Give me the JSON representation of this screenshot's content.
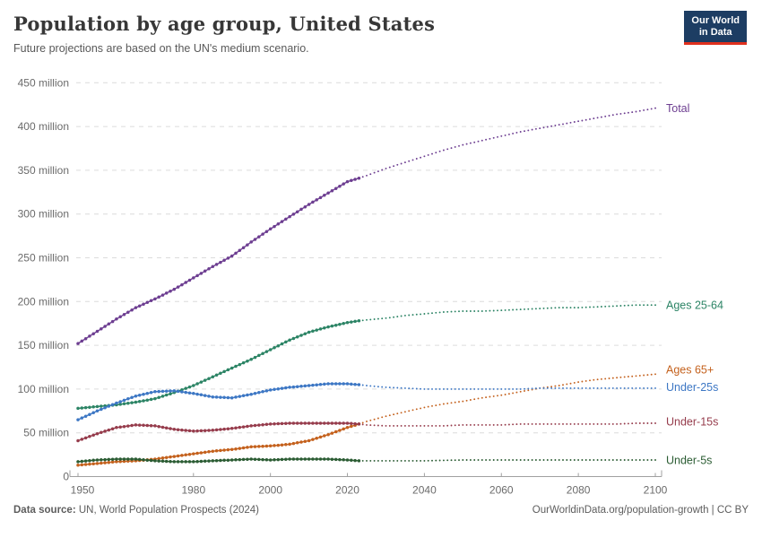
{
  "header": {
    "logo_line1": "Our World",
    "logo_line2": "in Data",
    "logo_bg": "#1d3d63",
    "logo_accent": "#e0301e"
  },
  "footer": {
    "source_label": "Data source:",
    "source_text": " UN, World Population Prospects (2024)",
    "credit": "OurWorldinData.org/population-growth | CC BY"
  },
  "chart_data": {
    "type": "line",
    "title": "Population by age group, United States",
    "subtitle": "Future projections are based on the UN's medium scenario.",
    "unit": "million",
    "xlim": [
      1950,
      2100
    ],
    "ylim": [
      0,
      450
    ],
    "grid": "dashed-horizontal",
    "legend_position": "right-of-line-ends",
    "projection_start_year": 2023,
    "x_axis": {
      "ticks": [
        {
          "year": 1950,
          "label": "1950"
        },
        {
          "year": 1980,
          "label": "1980"
        },
        {
          "year": 2000,
          "label": "2000"
        },
        {
          "year": 2020,
          "label": "2020"
        },
        {
          "year": 2040,
          "label": "2040"
        },
        {
          "year": 2060,
          "label": "2060"
        },
        {
          "year": 2080,
          "label": "2080"
        },
        {
          "year": 2100,
          "label": "2100"
        }
      ]
    },
    "y_axis": {
      "ticks": [
        {
          "value": 0,
          "label": "0"
        },
        {
          "value": 50,
          "label": "50 million"
        },
        {
          "value": 100,
          "label": "100 million"
        },
        {
          "value": 150,
          "label": "150 million"
        },
        {
          "value": 200,
          "label": "200 million"
        },
        {
          "value": 250,
          "label": "250 million"
        },
        {
          "value": 300,
          "label": "300 million"
        },
        {
          "value": 350,
          "label": "350 million"
        },
        {
          "value": 400,
          "label": "400 million"
        },
        {
          "value": 450,
          "label": "450 million"
        }
      ]
    },
    "series": [
      {
        "name": "Total",
        "slug": "total",
        "color": "#6d3e91",
        "label_dy": 0,
        "points": [
          [
            1950,
            152
          ],
          [
            1955,
            166
          ],
          [
            1960,
            180
          ],
          [
            1965,
            193
          ],
          [
            1970,
            203
          ],
          [
            1975,
            214
          ],
          [
            1980,
            227
          ],
          [
            1985,
            240
          ],
          [
            1990,
            252
          ],
          [
            1995,
            268
          ],
          [
            2000,
            283
          ],
          [
            2005,
            297
          ],
          [
            2010,
            311
          ],
          [
            2015,
            324
          ],
          [
            2020,
            337
          ],
          [
            2023,
            341
          ],
          [
            2025,
            344
          ],
          [
            2030,
            352
          ],
          [
            2035,
            359
          ],
          [
            2040,
            366
          ],
          [
            2045,
            373
          ],
          [
            2050,
            379
          ],
          [
            2055,
            384
          ],
          [
            2060,
            389
          ],
          [
            2065,
            394
          ],
          [
            2070,
            398
          ],
          [
            2075,
            402
          ],
          [
            2080,
            406
          ],
          [
            2085,
            410
          ],
          [
            2090,
            414
          ],
          [
            2095,
            417
          ],
          [
            2100,
            421
          ]
        ]
      },
      {
        "name": "Ages 25-64",
        "slug": "ages-25-64",
        "color": "#2c8465",
        "label_dy": 0,
        "points": [
          [
            1950,
            78
          ],
          [
            1955,
            80
          ],
          [
            1960,
            82
          ],
          [
            1965,
            85
          ],
          [
            1970,
            89
          ],
          [
            1975,
            96
          ],
          [
            1980,
            104
          ],
          [
            1985,
            114
          ],
          [
            1990,
            124
          ],
          [
            1995,
            134
          ],
          [
            2000,
            145
          ],
          [
            2005,
            156
          ],
          [
            2010,
            165
          ],
          [
            2015,
            171
          ],
          [
            2020,
            176
          ],
          [
            2023,
            178
          ],
          [
            2025,
            179
          ],
          [
            2030,
            181
          ],
          [
            2035,
            184
          ],
          [
            2040,
            186
          ],
          [
            2045,
            188
          ],
          [
            2050,
            189
          ],
          [
            2055,
            189
          ],
          [
            2060,
            190
          ],
          [
            2065,
            191
          ],
          [
            2070,
            192
          ],
          [
            2075,
            193
          ],
          [
            2080,
            193
          ],
          [
            2085,
            194
          ],
          [
            2090,
            195
          ],
          [
            2095,
            196
          ],
          [
            2100,
            196
          ]
        ]
      },
      {
        "name": "Ages 65+",
        "slug": "ages-65-plus",
        "color": "#c4611d",
        "label_dy": -5,
        "points": [
          [
            1950,
            13
          ],
          [
            1955,
            15
          ],
          [
            1960,
            17
          ],
          [
            1965,
            18
          ],
          [
            1970,
            20
          ],
          [
            1975,
            23
          ],
          [
            1980,
            26
          ],
          [
            1985,
            29
          ],
          [
            1990,
            31
          ],
          [
            1995,
            34
          ],
          [
            2000,
            35
          ],
          [
            2005,
            37
          ],
          [
            2010,
            41
          ],
          [
            2015,
            48
          ],
          [
            2020,
            56
          ],
          [
            2023,
            60
          ],
          [
            2025,
            63
          ],
          [
            2030,
            69
          ],
          [
            2035,
            74
          ],
          [
            2040,
            79
          ],
          [
            2045,
            83
          ],
          [
            2050,
            86
          ],
          [
            2055,
            90
          ],
          [
            2060,
            93
          ],
          [
            2065,
            97
          ],
          [
            2070,
            101
          ],
          [
            2075,
            104
          ],
          [
            2080,
            108
          ],
          [
            2085,
            111
          ],
          [
            2090,
            113
          ],
          [
            2095,
            115
          ],
          [
            2100,
            117
          ]
        ]
      },
      {
        "name": "Under-25s",
        "slug": "under-25s",
        "color": "#3d77c4",
        "label_dy": -1,
        "points": [
          [
            1950,
            65
          ],
          [
            1955,
            75
          ],
          [
            1960,
            84
          ],
          [
            1965,
            92
          ],
          [
            1970,
            97
          ],
          [
            1975,
            98
          ],
          [
            1980,
            95
          ],
          [
            1985,
            91
          ],
          [
            1990,
            90
          ],
          [
            1995,
            94
          ],
          [
            2000,
            99
          ],
          [
            2005,
            102
          ],
          [
            2010,
            104
          ],
          [
            2015,
            106
          ],
          [
            2020,
            106
          ],
          [
            2023,
            105
          ],
          [
            2025,
            104
          ],
          [
            2030,
            102
          ],
          [
            2035,
            101
          ],
          [
            2040,
            100
          ],
          [
            2045,
            100
          ],
          [
            2050,
            100
          ],
          [
            2055,
            100
          ],
          [
            2060,
            100
          ],
          [
            2065,
            100
          ],
          [
            2070,
            101
          ],
          [
            2075,
            101
          ],
          [
            2080,
            101
          ],
          [
            2085,
            101
          ],
          [
            2090,
            101
          ],
          [
            2095,
            101
          ],
          [
            2100,
            101
          ]
        ]
      },
      {
        "name": "Under-15s",
        "slug": "under-15s",
        "color": "#963c4c",
        "label_dy": -2,
        "points": [
          [
            1950,
            41
          ],
          [
            1955,
            49
          ],
          [
            1960,
            56
          ],
          [
            1965,
            59
          ],
          [
            1970,
            58
          ],
          [
            1975,
            54
          ],
          [
            1980,
            52
          ],
          [
            1985,
            53
          ],
          [
            1990,
            55
          ],
          [
            1995,
            58
          ],
          [
            2000,
            60
          ],
          [
            2005,
            61
          ],
          [
            2010,
            61
          ],
          [
            2015,
            61
          ],
          [
            2020,
            61
          ],
          [
            2023,
            60
          ],
          [
            2025,
            59
          ],
          [
            2030,
            58
          ],
          [
            2035,
            58
          ],
          [
            2040,
            58
          ],
          [
            2045,
            58
          ],
          [
            2050,
            59
          ],
          [
            2055,
            59
          ],
          [
            2060,
            59
          ],
          [
            2065,
            60
          ],
          [
            2070,
            60
          ],
          [
            2075,
            60
          ],
          [
            2080,
            60
          ],
          [
            2085,
            60
          ],
          [
            2090,
            60
          ],
          [
            2095,
            61
          ],
          [
            2100,
            61
          ]
        ]
      },
      {
        "name": "Under-5s",
        "slug": "under-5s",
        "color": "#2b5c33",
        "label_dy": 0,
        "points": [
          [
            1950,
            17
          ],
          [
            1955,
            19
          ],
          [
            1960,
            20
          ],
          [
            1965,
            20
          ],
          [
            1970,
            18
          ],
          [
            1975,
            17
          ],
          [
            1980,
            17
          ],
          [
            1985,
            18
          ],
          [
            1990,
            19
          ],
          [
            1995,
            20
          ],
          [
            2000,
            19
          ],
          [
            2005,
            20
          ],
          [
            2010,
            20
          ],
          [
            2015,
            20
          ],
          [
            2020,
            19
          ],
          [
            2023,
            18
          ],
          [
            2030,
            18
          ],
          [
            2040,
            18
          ],
          [
            2050,
            19
          ],
          [
            2060,
            19
          ],
          [
            2070,
            19
          ],
          [
            2080,
            19
          ],
          [
            2090,
            19
          ],
          [
            2100,
            19
          ]
        ]
      }
    ]
  }
}
